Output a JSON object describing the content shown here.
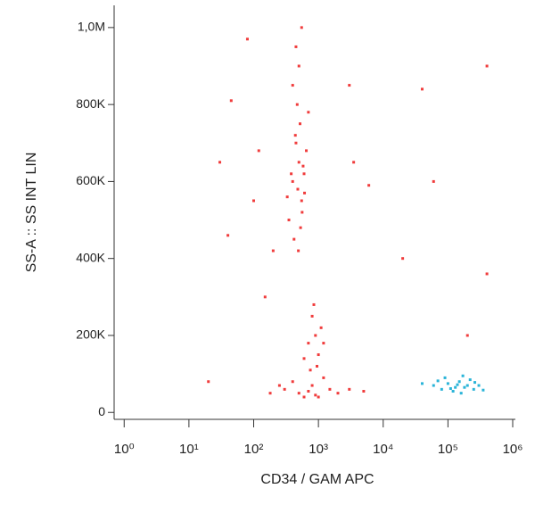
{
  "chart_data": {
    "type": "scatter",
    "x_label": "CD34 / GAM APC",
    "y_label": "SS-A :: SS INT LIN",
    "x_scale": "log",
    "xlim": [
      0.7,
      1000000
    ],
    "ylim": [
      -18000,
      1053000
    ],
    "xticks": [
      {
        "value": 1,
        "label": "10⁰"
      },
      {
        "value": 10,
        "label": "10¹"
      },
      {
        "value": 100,
        "label": "10²"
      },
      {
        "value": 1000,
        "label": "10³"
      },
      {
        "value": 10000,
        "label": "10⁴"
      },
      {
        "value": 100000,
        "label": "10⁵"
      },
      {
        "value": 1000000,
        "label": "10⁶"
      }
    ],
    "yticks": [
      0,
      {
        "value": 200000,
        "label": "200K"
      },
      {
        "value": 400000,
        "label": "400K"
      },
      {
        "value": 600000,
        "label": "600K"
      },
      {
        "value": 800000,
        "label": "800K"
      },
      {
        "value": 1000000,
        "label": "1,0M"
      }
    ],
    "series": [
      {
        "color": "#f03c3c",
        "x": [
          400,
          500,
          550,
          450,
          600,
          350,
          480,
          520,
          420,
          650,
          380,
          560,
          470,
          530,
          440,
          610,
          500,
          450,
          550,
          400,
          700,
          330,
          490,
          580,
          800,
          900,
          1000,
          700,
          1100,
          850,
          950,
          600,
          1200,
          750,
          300,
          500,
          800,
          1000,
          1500,
          2000,
          400,
          600,
          1200,
          250,
          700,
          3000,
          180,
          900,
          5000,
          30,
          40,
          45,
          100,
          120,
          80,
          150,
          20,
          200,
          3000,
          6000,
          40000,
          20000,
          400000,
          400000,
          200000,
          60000,
          3500
        ],
        "values": [
          600000,
          650000,
          550000,
          700000,
          620000,
          500000,
          580000,
          750000,
          450000,
          680000,
          620000,
          520000,
          800000,
          480000,
          720000,
          570000,
          900000,
          950000,
          1000000,
          850000,
          780000,
          560000,
          420000,
          640000,
          250000,
          200000,
          150000,
          180000,
          220000,
          280000,
          120000,
          140000,
          180000,
          110000,
          60000,
          50000,
          70000,
          40000,
          60000,
          50000,
          80000,
          40000,
          90000,
          70000,
          55000,
          60000,
          50000,
          45000,
          55000,
          650000,
          460000,
          810000,
          550000,
          680000,
          970000,
          300000,
          80000,
          420000,
          850000,
          590000,
          840000,
          400000,
          900000,
          360000,
          200000,
          600000,
          650000
        ]
      },
      {
        "color": "#2ab4d8",
        "x": [
          60000,
          80000,
          100000,
          120000,
          150000,
          180000,
          200000,
          250000,
          90000,
          130000,
          160000,
          220000,
          300000,
          40000,
          110000,
          140000,
          350000,
          70000,
          170000,
          260000
        ],
        "values": [
          70000,
          60000,
          75000,
          55000,
          80000,
          65000,
          70000,
          60000,
          90000,
          65000,
          50000,
          85000,
          70000,
          75000,
          62000,
          72000,
          58000,
          82000,
          95000,
          78000
        ]
      }
    ]
  }
}
